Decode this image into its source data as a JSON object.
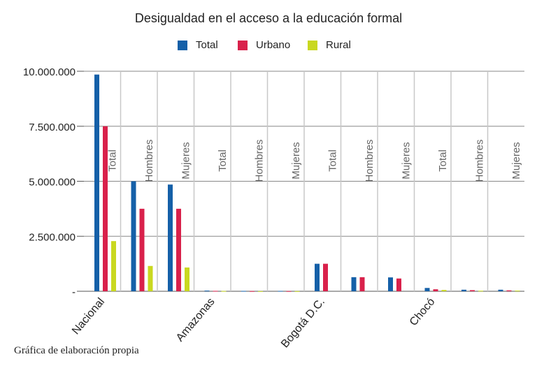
{
  "chart_data": {
    "type": "bar",
    "title": "Desigualdad en el acceso a la educación formal",
    "xlabel": "",
    "ylabel": "",
    "ylim": [
      0,
      10000000
    ],
    "yticks": [
      "-",
      "2.500.000",
      "5.000.000",
      "7.500.000",
      "10.000.000"
    ],
    "ytick_values": [
      0,
      2500000,
      5000000,
      7500000,
      10000000
    ],
    "groups": [
      "Nacional",
      "Amazonas",
      "Bogotá D.C.",
      "Chocó"
    ],
    "subcategories": [
      "Total",
      "Hombres",
      "Mujeres"
    ],
    "categories": [
      "Nacional - Total",
      "Nacional - Hombres",
      "Nacional - Mujeres",
      "Amazonas - Total",
      "Amazonas - Hombres",
      "Amazonas - Mujeres",
      "Bogotá D.C. - Total",
      "Bogotá D.C. - Hombres",
      "Bogotá D.C. - Mujeres",
      "Chocó - Total",
      "Chocó - Hombres",
      "Chocó - Mujeres"
    ],
    "series": [
      {
        "name": "Total",
        "color": "#1560a8",
        "values": [
          9850000,
          5000000,
          4850000,
          30000,
          15000,
          15000,
          1250000,
          640000,
          630000,
          150000,
          70000,
          70000
        ]
      },
      {
        "name": "Urbano",
        "color": "#d9214b",
        "values": [
          7500000,
          3750000,
          3750000,
          18000,
          9000,
          9000,
          1250000,
          640000,
          580000,
          90000,
          50000,
          40000
        ]
      },
      {
        "name": "Rural",
        "color": "#c9d820",
        "values": [
          2280000,
          1150000,
          1080000,
          12000,
          6000,
          6000,
          0,
          0,
          0,
          60000,
          25000,
          30000
        ]
      }
    ],
    "grid": true,
    "legend": "top-center"
  },
  "caption": "Gráfica de elaboración propia"
}
